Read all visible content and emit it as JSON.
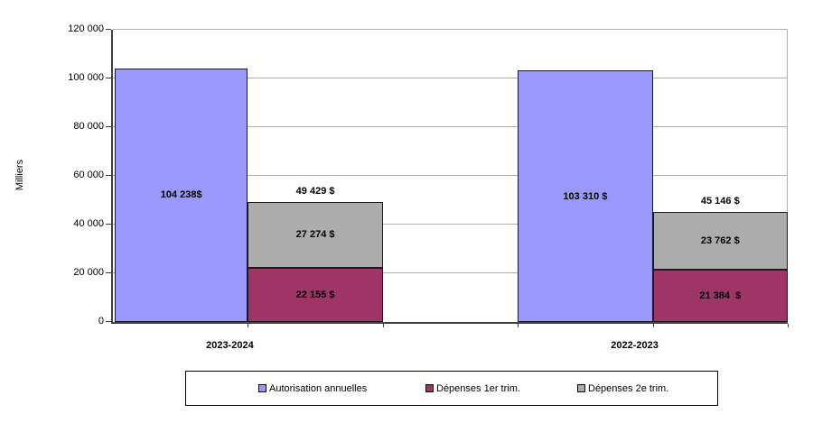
{
  "chart_data": {
    "type": "bar",
    "title": "",
    "ylabel": "Milliers",
    "xlabel": "",
    "ylim": [
      0,
      120000
    ],
    "ytick_step": 20000,
    "ytick_labels": [
      "0",
      "20 000",
      "40 000",
      "60 000",
      "80 000",
      "100 000",
      "120 000"
    ],
    "grid": true,
    "legend_position": "bottom",
    "categories": [
      "2023-2024",
      "2022-2023"
    ],
    "series": [
      {
        "name": "Autorisation annuelles",
        "role": "column",
        "color": "#9a99f9",
        "values": [
          104238,
          103310
        ],
        "value_labels": [
          "104 238$",
          "103 310 $"
        ]
      },
      {
        "name": "Dépenses 1er trim.",
        "role": "stack-bottom",
        "color": "#9e3567",
        "values": [
          22155,
          21384
        ],
        "value_labels": [
          "22 155 $",
          "21 384  $"
        ]
      },
      {
        "name": "Dépenses 2e trim.",
        "role": "stack-top",
        "color": "#acacac",
        "values": [
          27274,
          23762
        ],
        "value_labels": [
          "27 274 $",
          "23 762 $"
        ]
      }
    ],
    "stack_totals": [
      49429,
      45146
    ],
    "stack_total_labels": [
      "49 429 $",
      "45 146 $"
    ]
  }
}
